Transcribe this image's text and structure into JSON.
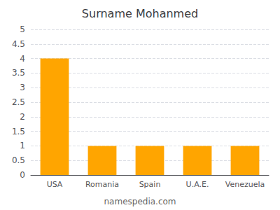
{
  "chart_data": {
    "type": "bar",
    "title": "Surname Mohanmed",
    "categories": [
      "USA",
      "Romania",
      "Spain",
      "U.A.E.",
      "Venezuela"
    ],
    "values": [
      4,
      1,
      1,
      1,
      1
    ],
    "color": "#FFA500",
    "ylim": [
      0,
      5
    ],
    "yticks": [
      0,
      0.5,
      1,
      1.5,
      2,
      2.5,
      3,
      3.5,
      4,
      4.5,
      5
    ],
    "grid": true,
    "annotation": "namespedia.com"
  }
}
